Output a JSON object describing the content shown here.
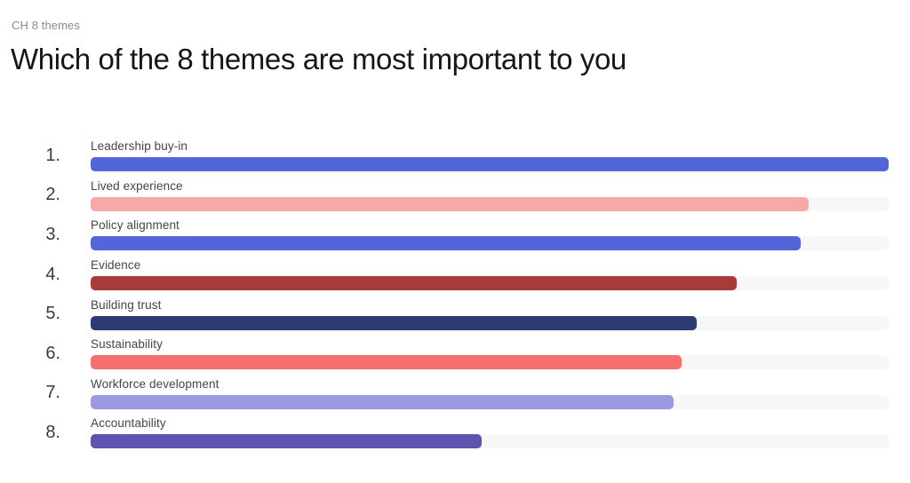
{
  "header": {
    "deck_label": "CH 8 themes",
    "title": "Which of the 8 themes are most important to you"
  },
  "chart_data": {
    "type": "bar",
    "orientation": "horizontal",
    "title": "Which of the 8 themes are most important to you",
    "categories": [
      "Leadership buy-in",
      "Lived experience",
      "Policy alignment",
      "Evidence",
      "Building trust",
      "Sustainability",
      "Workforce development",
      "Accountability"
    ],
    "ranks": [
      "1.",
      "2.",
      "3.",
      "4.",
      "5.",
      "6.",
      "7.",
      "8."
    ],
    "values": [
      100,
      90,
      89,
      81,
      76,
      74,
      73,
      49
    ],
    "value_note": "relative bar length, percent of track (no numeric labels shown on slide)",
    "xlim": [
      0,
      100
    ],
    "grid": false,
    "legend": "none",
    "bar_colors": [
      "#5266d9",
      "#f9a8a8",
      "#5266d9",
      "#a93a3a",
      "#2e3a72",
      "#f76e6e",
      "#9c99e3",
      "#5b54b0"
    ],
    "track_color": "#f7f7f7"
  }
}
